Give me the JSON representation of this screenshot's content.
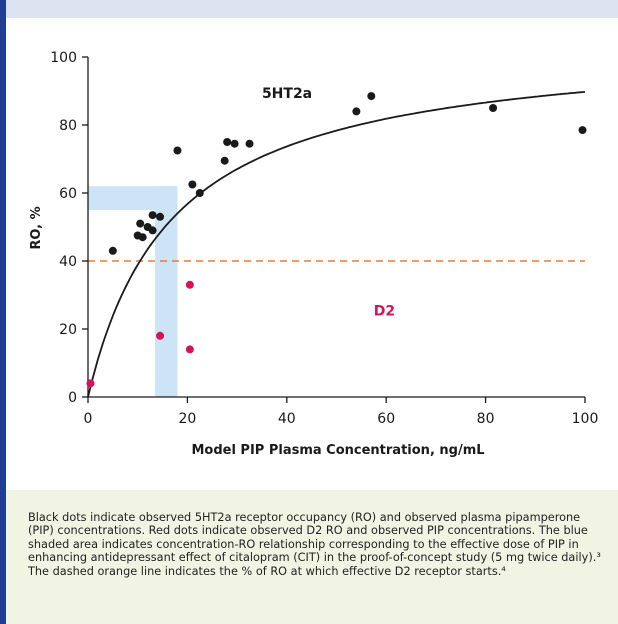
{
  "chart_data": {
    "type": "scatter",
    "xlabel": "Model PIP Plasma Concentration, ng/mL",
    "ylabel": "RO, %",
    "xlim": [
      0,
      100
    ],
    "ylim": [
      0,
      100
    ],
    "x_ticks": [
      "0",
      "20",
      "40",
      "60",
      "80",
      "100"
    ],
    "y_ticks": [
      "0",
      "20",
      "40",
      "60",
      "80",
      "100"
    ],
    "grid": false,
    "annotations": [
      {
        "text": "5HT2a",
        "x": 35,
        "y": 88,
        "color": "#1a1a1a"
      },
      {
        "text": "D2",
        "x": 57.5,
        "y": 24,
        "color": "#d4145a"
      }
    ],
    "series": [
      {
        "color": "#1a1a1a",
        "points": [
          [
            5,
            43
          ],
          [
            10,
            47.5
          ],
          [
            10.5,
            51
          ],
          [
            11,
            47
          ],
          [
            12,
            50
          ],
          [
            13,
            53.5
          ],
          [
            13,
            49
          ],
          [
            14.5,
            53
          ],
          [
            18,
            72.5
          ],
          [
            21,
            62.5
          ],
          [
            22.5,
            60
          ],
          [
            27.5,
            69.5
          ],
          [
            28,
            75
          ],
          [
            29.5,
            74.5
          ],
          [
            32.5,
            74.5
          ],
          [
            54,
            84
          ],
          [
            57,
            88.5
          ],
          [
            81.5,
            85
          ],
          [
            99.5,
            78.5
          ]
        ]
      },
      {
        "color": "#d4145a",
        "points": [
          [
            0.5,
            4
          ],
          [
            14.5,
            18
          ],
          [
            20.5,
            33
          ],
          [
            20.5,
            14
          ]
        ]
      }
    ],
    "fit_curve": {
      "type": "emax",
      "emax": 105,
      "ec50": 17,
      "color": "#1a1a1a"
    },
    "reference_line": {
      "y": 40,
      "color": "#f07828",
      "style": "dashed"
    },
    "shaded_region": {
      "color": "#cce4f6",
      "x_range": [
        13.5,
        18
      ],
      "y_range": [
        55,
        62
      ]
    }
  },
  "caption": "Black dots indicate observed 5HT2a receptor occupancy (RO) and observed plasma pipamperone (PIP) concentrations. Red dots indicate observed D2 RO and observed PIP concentrations. The blue shaded area indicates concentration-RO relationship corresponding to the effective dose of PIP in enhancing antidepressant effect of citalopram (CIT) in the proof-of-concept study (5 mg twice daily).³ The dashed orange line indicates the % of RO at which effective D2 receptor starts.⁴"
}
